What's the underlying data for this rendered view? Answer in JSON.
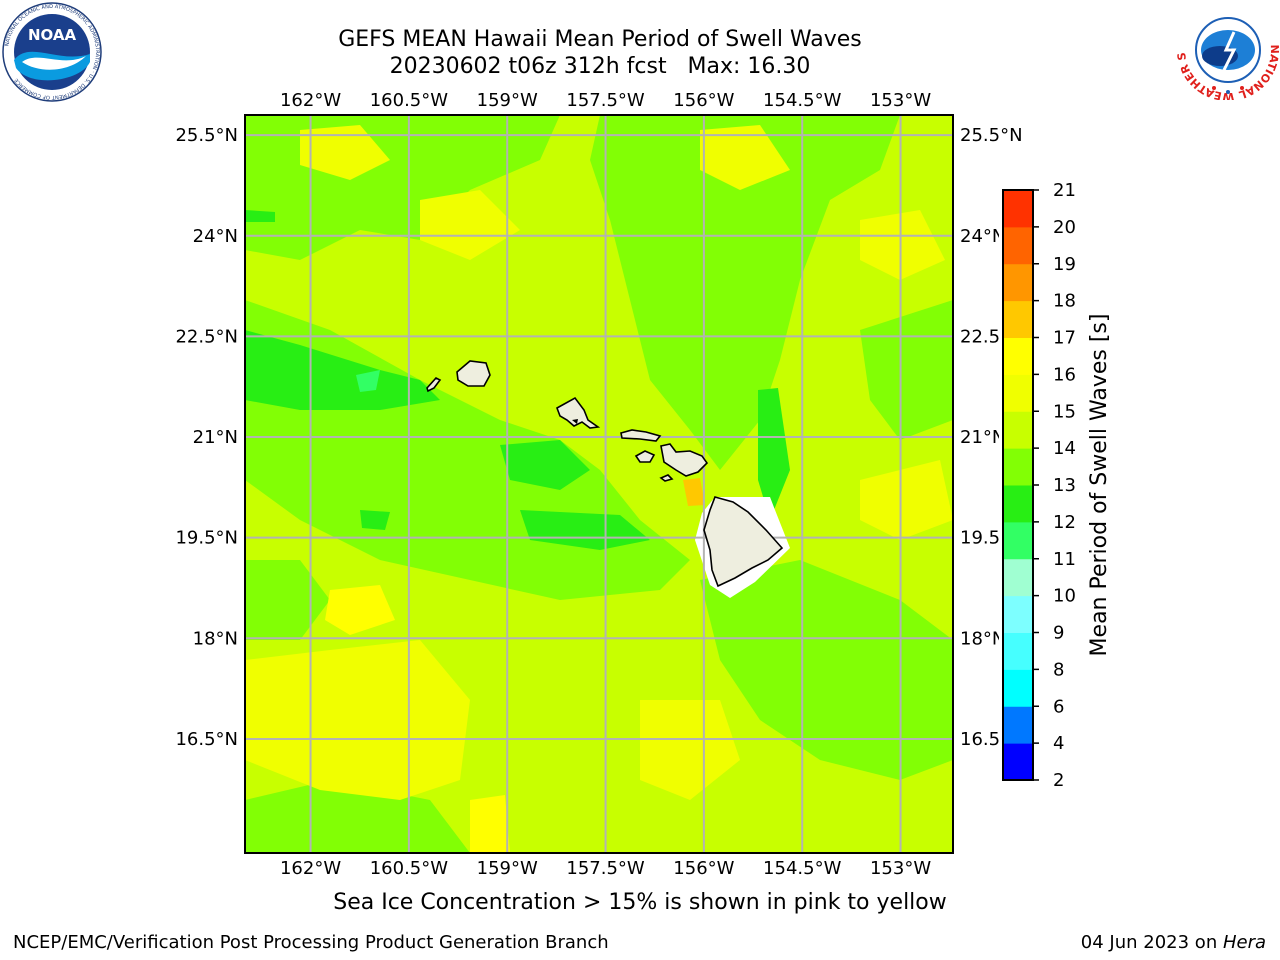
{
  "header": {
    "title_line1": "GEFS MEAN Hawaii Mean Period of Swell Waves",
    "title_line2": "20230602 t06z 312h fcst   Max: 16.30"
  },
  "map": {
    "projection": "PlateCarree",
    "lon_range": [
      -163,
      -152.2
    ],
    "lat_range": [
      14.8,
      25.8
    ],
    "lon_ticks": [
      "162°W",
      "160.5°W",
      "159°W",
      "157.5°W",
      "156°W",
      "154.5°W",
      "153°W"
    ],
    "lon_tick_values": [
      -162,
      -160.5,
      -159,
      -157.5,
      -156,
      -154.5,
      -153
    ],
    "lat_ticks": [
      "25.5°N",
      "24°N",
      "22.5°N",
      "21°N",
      "19.5°N",
      "18°N",
      "16.5°N"
    ],
    "lat_tick_values": [
      25.5,
      24,
      22.5,
      21,
      19.5,
      18,
      16.5
    ],
    "gridlines": true,
    "field": "Mean Period of Swell Waves",
    "max_value": 16.3,
    "dominant_range_s": [
      12,
      15
    ]
  },
  "colorbar": {
    "label": "Mean Period of Swell Waves [s]",
    "levels": [
      2,
      4,
      6,
      8,
      9,
      10,
      11,
      12,
      13,
      14,
      15,
      16,
      17,
      18,
      19,
      20,
      21
    ],
    "colors": [
      "#0000ff",
      "#0078ff",
      "#00ffff",
      "#46ffff",
      "#7dffff",
      "#a0ffd2",
      "#32ff64",
      "#28ee14",
      "#82ff05",
      "#c8ff00",
      "#f0ff00",
      "#ffff00",
      "#ffc800",
      "#ff9600",
      "#ff6400",
      "#ff3200",
      "#ff0000"
    ]
  },
  "caption": "Sea Ice Concentration > 15% is shown in pink to yellow",
  "footer": {
    "left": "NCEP/EMC/Verification Post Processing Product Generation Branch",
    "right_date": "04 Jun 2023 on ",
    "right_host": "Hera"
  },
  "logos": {
    "noaa": "NOAA",
    "noaa_ring_text": "NATIONAL OCEANIC AND ATMOSPHERIC ADMINISTRATION · U.S. DEPARTMENT OF COMMERCE",
    "nws_ring_text": "NATIONAL WEATHER SERVICE"
  }
}
